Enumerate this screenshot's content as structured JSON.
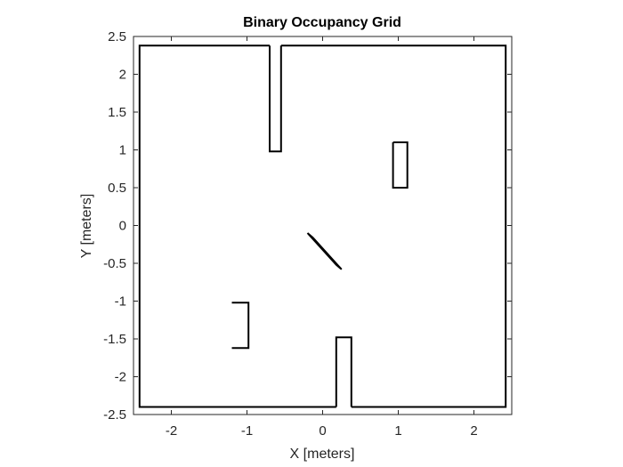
{
  "chart_data": {
    "type": "line",
    "title": "Binary Occupancy Grid",
    "xlabel": "X [meters]",
    "ylabel": "Y [meters]",
    "xlim": [
      -2.5,
      2.5
    ],
    "ylim": [
      -2.5,
      2.5
    ],
    "x_ticks": [
      -2,
      -1,
      0,
      1,
      2
    ],
    "y_ticks": [
      -2.5,
      -2,
      -1.5,
      -1,
      -0.5,
      0,
      0.5,
      1,
      1.5,
      2,
      2.5
    ],
    "x_tick_labels": [
      "-2",
      "-1",
      "0",
      "1",
      "2"
    ],
    "y_tick_labels": [
      "-2.5",
      "-2",
      "-1.5",
      "-1",
      "-0.5",
      "0",
      "0.5",
      "1",
      "1.5",
      "2",
      "2.5"
    ],
    "grid": false,
    "colors": {
      "occupied": "#000000",
      "free": "#ffffff",
      "axis": "#262626"
    },
    "obstacles": [
      {
        "name": "outer-wall-left",
        "points": [
          [
            -0.7,
            2.38
          ],
          [
            -2.42,
            2.38
          ],
          [
            -2.42,
            -2.4
          ],
          [
            0.18,
            -2.4
          ]
        ]
      },
      {
        "name": "outer-wall-right",
        "points": [
          [
            -0.55,
            2.38
          ],
          [
            2.42,
            2.38
          ],
          [
            2.42,
            -2.4
          ],
          [
            0.38,
            -2.4
          ]
        ]
      },
      {
        "name": "wall-divider-top",
        "points": [
          [
            -0.7,
            2.38
          ],
          [
            -0.7,
            0.98
          ],
          [
            -0.55,
            0.98
          ],
          [
            -0.55,
            2.38
          ]
        ]
      },
      {
        "name": "wall-divider-bottom",
        "points": [
          [
            0.18,
            -2.4
          ],
          [
            0.18,
            -1.48
          ],
          [
            0.38,
            -1.48
          ],
          [
            0.38,
            -2.4
          ]
        ]
      },
      {
        "name": "box-right",
        "points": [
          [
            0.93,
            1.1
          ],
          [
            1.12,
            1.1
          ],
          [
            1.12,
            0.5
          ],
          [
            0.93,
            0.5
          ],
          [
            0.93,
            1.1
          ]
        ]
      },
      {
        "name": "bar-center",
        "points": [
          [
            -0.2,
            -0.1
          ],
          [
            -0.13,
            -0.16
          ],
          [
            0.25,
            -0.58
          ],
          [
            0.18,
            -0.52
          ],
          [
            -0.2,
            -0.1
          ]
        ]
      },
      {
        "name": "bracket-left",
        "points": [
          [
            -1.2,
            -1.02
          ],
          [
            -0.98,
            -1.02
          ],
          [
            -0.98,
            -1.62
          ],
          [
            -1.2,
            -1.62
          ]
        ]
      }
    ]
  }
}
